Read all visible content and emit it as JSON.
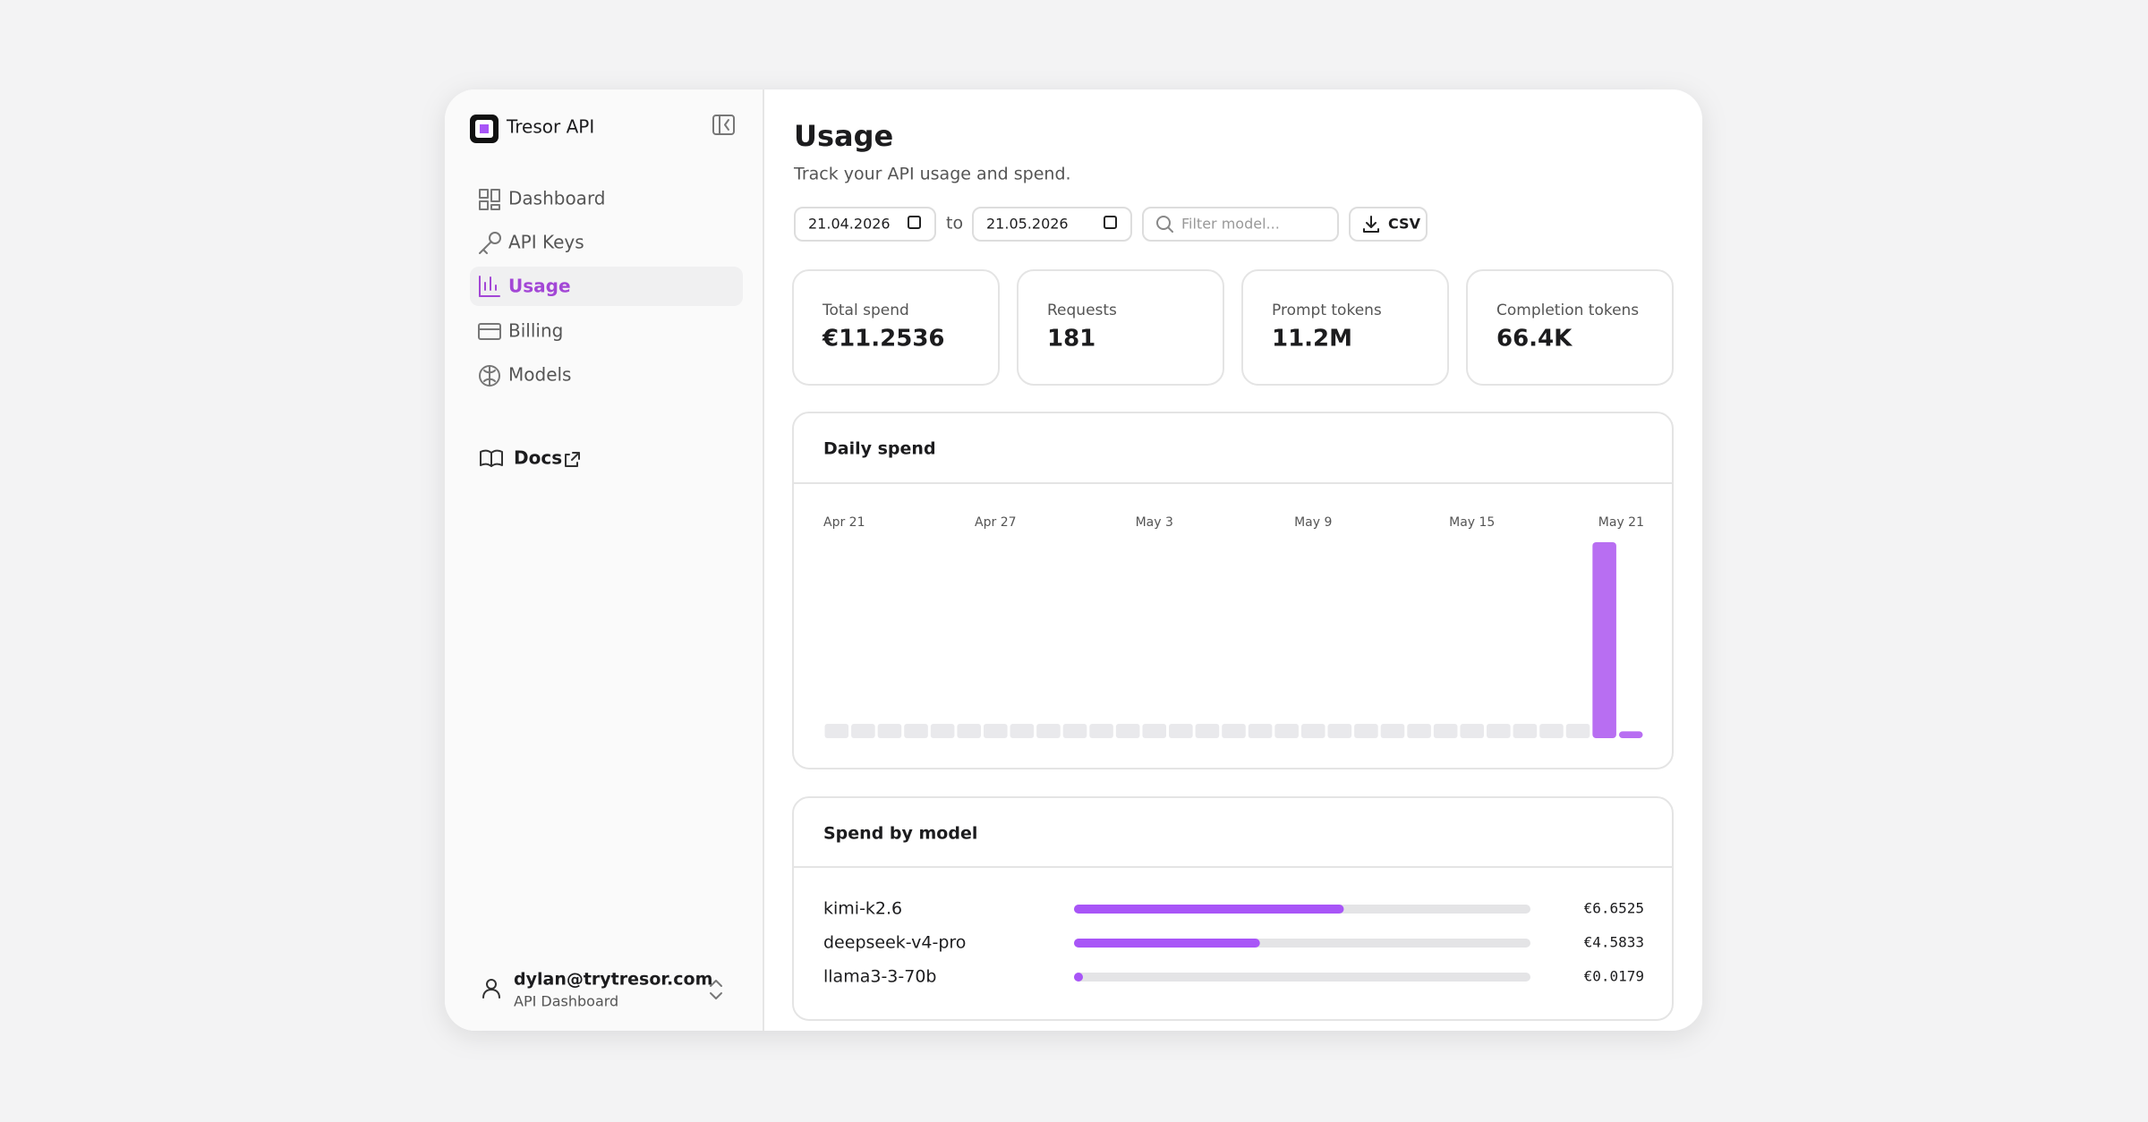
{
  "sidebar": {
    "brand": "Tresor API",
    "nav": [
      "Dashboard",
      "API Keys",
      "Usage",
      "Billing",
      "Models"
    ],
    "active": 2,
    "docs": "Docs",
    "user": {
      "email": "dylan@trytresor.com",
      "role": "API Dashboard"
    }
  },
  "header": {
    "title": "Usage",
    "subtitle": "Track your API usage and spend."
  },
  "filters": {
    "from": "21.04.2026",
    "separator": "to",
    "to": "21.05.2026",
    "search_placeholder": "Filter model...",
    "export": "CSV"
  },
  "stats": [
    {
      "label": "Total spend",
      "value": "€11.2536"
    },
    {
      "label": "Requests",
      "value": "181"
    },
    {
      "label": "Prompt tokens",
      "value": "11.2M"
    },
    {
      "label": "Completion tokens",
      "value": "66.4K"
    }
  ],
  "chart_data": [
    {
      "type": "bar",
      "title": "Daily spend",
      "categories": [
        "Apr 21",
        null,
        null,
        null,
        null,
        null,
        "Apr 27",
        null,
        null,
        null,
        null,
        null,
        "May 3",
        null,
        null,
        null,
        null,
        null,
        "May 9",
        null,
        null,
        null,
        null,
        null,
        "May 15",
        null,
        null,
        null,
        null,
        null,
        "May 21"
      ],
      "values": [
        0,
        0,
        0,
        0,
        0,
        0,
        0,
        0,
        0,
        0,
        0,
        0,
        0,
        0,
        0,
        0,
        0,
        0,
        0,
        0,
        0,
        0,
        0,
        0,
        0,
        0,
        0,
        0,
        0,
        10.87,
        0.38
      ],
      "color": "#b86ef2",
      "empty_color": "#e9e9ec"
    },
    {
      "type": "hbar",
      "title": "Spend by model",
      "categories": [
        "kimi-k2.6",
        "deepseek-v4-pro",
        "llama3-3-70b"
      ],
      "values": [
        6.6525,
        4.5833,
        0.0179
      ],
      "value_labels": [
        "€6.6525",
        "€4.5833",
        "€0.0179"
      ],
      "color": "#a855f7",
      "track_color": "#e4e4e6",
      "xlim": [
        0,
        11.2536
      ]
    }
  ]
}
